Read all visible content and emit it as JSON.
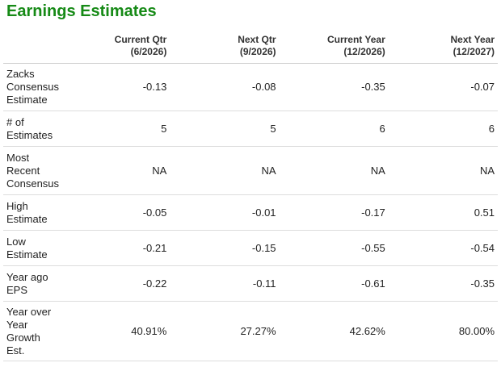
{
  "header": {
    "title": "Earnings Estimates"
  },
  "table": {
    "columns": [
      {
        "name": "Current Qtr",
        "period": "(6/2026)"
      },
      {
        "name": "Next Qtr",
        "period": "(9/2026)"
      },
      {
        "name": "Current Year",
        "period": "(12/2026)"
      },
      {
        "name": "Next Year",
        "period": "(12/2027)"
      }
    ],
    "rows": [
      [
        "Zacks Consensus Estimate",
        "-0.13",
        "-0.08",
        "-0.35",
        "-0.07"
      ],
      [
        "# of Estimates",
        "5",
        "5",
        "6",
        "6"
      ],
      [
        "Most Recent Consensus",
        "NA",
        "NA",
        "NA",
        "NA"
      ],
      [
        "High Estimate",
        "-0.05",
        "-0.01",
        "-0.17",
        "0.51"
      ],
      [
        "Low Estimate",
        "-0.21",
        "-0.15",
        "-0.55",
        "-0.54"
      ],
      [
        "Year ago EPS",
        "-0.22",
        "-0.11",
        "-0.61",
        "-0.35"
      ],
      [
        "Year over Year Growth Est.",
        "40.91%",
        "27.27%",
        "42.62%",
        "80.00%"
      ]
    ]
  }
}
